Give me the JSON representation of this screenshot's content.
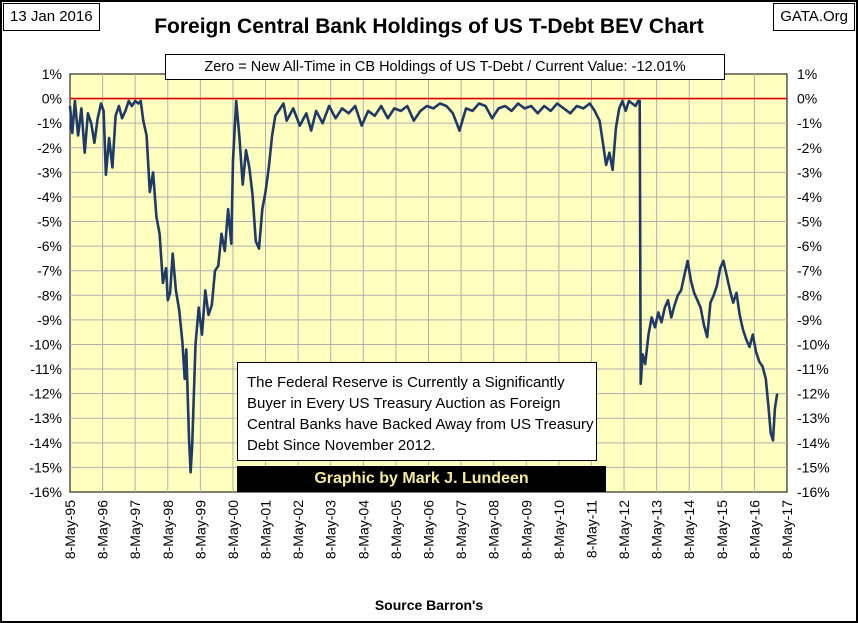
{
  "header": {
    "date": "13 Jan 2016",
    "source_site": "GATA.Org",
    "title": "Foreign Central Bank Holdings of US T-Debt BEV Chart"
  },
  "note": "Zero = New All-Time in CB Holdings of US T-Debt / Current Value: -12.01%",
  "annotation": "The Federal Reserve is Currently a Significantly Buyer in Every US Treasury Auction as Foreign Central Banks have Backed Away from US Treasury Debt Since November 2012.",
  "credit": "Graphic by Mark J. Lundeen",
  "x_axis_source": "Source Barron's",
  "colors": {
    "plot_background": "#ffffc0",
    "series_line": "#1f3a66",
    "zero_line": "#e00000"
  },
  "chart_data": {
    "type": "line",
    "title": "Foreign Central Bank Holdings of US T-Debt BEV Chart",
    "xlabel": "Source Barron's",
    "ylabel": "",
    "ylim": [
      -16,
      1
    ],
    "xlim": [
      1995.35,
      2017.35
    ],
    "y_ticks": [
      "1%",
      "0%",
      "-1%",
      "-2%",
      "-3%",
      "-4%",
      "-5%",
      "-6%",
      "-7%",
      "-8%",
      "-9%",
      "-10%",
      "-11%",
      "-12%",
      "-13%",
      "-14%",
      "-15%",
      "-16%"
    ],
    "x_ticks": [
      "8-May-95",
      "8-May-96",
      "8-May-97",
      "8-May-98",
      "8-May-99",
      "8-May-00",
      "8-May-01",
      "8-May-02",
      "8-May-03",
      "8-May-04",
      "8-May-05",
      "8-May-06",
      "8-May-07",
      "8-May-08",
      "8-May-09",
      "8-May-10",
      "8-May-11",
      "8-May-12",
      "8-May-13",
      "8-May-14",
      "8-May-15",
      "8-May-16",
      "8-May-17"
    ],
    "grid": true,
    "reference_line": 0,
    "current_value": -12.01,
    "series": [
      {
        "x": [
          1995.35,
          1995.42,
          1995.5,
          1995.6,
          1995.7,
          1995.8,
          1995.9,
          1996.0,
          1996.1,
          1996.2,
          1996.3,
          1996.38,
          1996.45,
          1996.55,
          1996.65,
          1996.75,
          1996.85,
          1996.95,
          1997.05,
          1997.15,
          1997.25,
          1997.35,
          1997.45,
          1997.52,
          1997.6,
          1997.7,
          1997.8,
          1997.9,
          1998.0,
          1998.1,
          1998.2,
          1998.3,
          1998.35,
          1998.42,
          1998.5,
          1998.6,
          1998.7,
          1998.8,
          1998.87,
          1998.92,
          1999.0,
          1999.05,
          1999.1,
          1999.2,
          1999.3,
          1999.4,
          1999.5,
          1999.6,
          1999.7,
          1999.8,
          1999.9,
          2000.0,
          2000.1,
          2000.2,
          2000.3,
          2000.35,
          2000.45,
          2000.55,
          2000.65,
          2000.75,
          2000.85,
          2000.95,
          2001.05,
          2001.15,
          2001.25,
          2001.35,
          2001.45,
          2001.55,
          2001.65,
          2001.75,
          2001.9,
          2002.0,
          2002.2,
          2002.4,
          2002.6,
          2002.75,
          2002.9,
          2003.1,
          2003.3,
          2003.5,
          2003.7,
          2003.9,
          2004.1,
          2004.3,
          2004.5,
          2004.7,
          2004.9,
          2005.1,
          2005.3,
          2005.5,
          2005.7,
          2005.9,
          2006.1,
          2006.3,
          2006.5,
          2006.7,
          2006.9,
          2007.1,
          2007.3,
          2007.5,
          2007.7,
          2007.9,
          2008.1,
          2008.3,
          2008.5,
          2008.7,
          2008.9,
          2009.1,
          2009.3,
          2009.5,
          2009.7,
          2009.9,
          2010.1,
          2010.3,
          2010.5,
          2010.7,
          2010.9,
          2011.1,
          2011.3,
          2011.45,
          2011.6,
          2011.7,
          2011.8,
          2011.9,
          2012.0,
          2012.1,
          2012.2,
          2012.3,
          2012.4,
          2012.5,
          2012.6,
          2012.7,
          2012.78,
          2012.83,
          2012.86,
          2012.92,
          2013.0,
          2013.1,
          2013.2,
          2013.3,
          2013.4,
          2013.5,
          2013.6,
          2013.7,
          2013.8,
          2013.9,
          2014.0,
          2014.1,
          2014.2,
          2014.3,
          2014.4,
          2014.5,
          2014.6,
          2014.7,
          2014.8,
          2014.9,
          2015.0,
          2015.1,
          2015.2,
          2015.3,
          2015.4,
          2015.5,
          2015.6,
          2015.7,
          2015.8,
          2015.9,
          2016.0,
          2016.1,
          2016.2,
          2016.3,
          2016.4,
          2016.5,
          2016.6,
          2016.7,
          2016.78,
          2016.85,
          2016.92,
          2016.98,
          2017.05
        ],
        "values": [
          -0.3,
          -1.4,
          -0.1,
          -1.5,
          -0.4,
          -2.2,
          -0.6,
          -1.0,
          -1.8,
          -0.8,
          -0.2,
          -0.5,
          -3.1,
          -1.6,
          -2.8,
          -0.7,
          -0.3,
          -0.8,
          -0.5,
          -0.1,
          -0.3,
          -0.1,
          -0.2,
          -0.1,
          -0.9,
          -1.5,
          -3.8,
          -3.0,
          -4.8,
          -5.5,
          -7.5,
          -6.9,
          -8.2,
          -7.9,
          -6.3,
          -7.8,
          -8.6,
          -9.9,
          -11.4,
          -10.2,
          -13.8,
          -15.2,
          -14.1,
          -10.0,
          -8.5,
          -9.6,
          -7.8,
          -8.8,
          -8.4,
          -7.0,
          -6.8,
          -5.5,
          -6.2,
          -4.5,
          -5.9,
          -2.5,
          -0.1,
          -1.6,
          -3.5,
          -2.1,
          -2.8,
          -3.9,
          -5.8,
          -6.1,
          -4.5,
          -3.8,
          -2.8,
          -1.5,
          -0.7,
          -0.5,
          -0.2,
          -0.9,
          -0.4,
          -1.1,
          -0.6,
          -1.3,
          -0.5,
          -1.0,
          -0.3,
          -0.8,
          -0.4,
          -0.6,
          -0.3,
          -1.1,
          -0.5,
          -0.7,
          -0.3,
          -0.8,
          -0.4,
          -0.5,
          -0.3,
          -0.9,
          -0.5,
          -0.3,
          -0.4,
          -0.2,
          -0.3,
          -0.6,
          -1.3,
          -0.4,
          -0.5,
          -0.2,
          -0.3,
          -0.8,
          -0.4,
          -0.3,
          -0.5,
          -0.2,
          -0.4,
          -0.3,
          -0.6,
          -0.3,
          -0.5,
          -0.2,
          -0.4,
          -0.6,
          -0.3,
          -0.4,
          -0.2,
          -0.5,
          -0.9,
          -1.8,
          -2.7,
          -2.2,
          -2.9,
          -1.2,
          -0.4,
          -0.1,
          -0.5,
          -0.1,
          -0.2,
          -0.3,
          -0.1,
          -0.1,
          -11.6,
          -10.4,
          -10.8,
          -9.6,
          -8.9,
          -9.3,
          -8.7,
          -9.1,
          -8.5,
          -8.2,
          -8.9,
          -8.4,
          -8.0,
          -7.8,
          -7.2,
          -6.6,
          -7.4,
          -7.9,
          -8.2,
          -8.5,
          -9.2,
          -9.7,
          -8.3,
          -8.0,
          -7.6,
          -6.9,
          -6.6,
          -7.2,
          -7.8,
          -8.3,
          -7.9,
          -8.8,
          -9.4,
          -9.8,
          -10.1,
          -9.6,
          -10.3,
          -10.7,
          -10.9,
          -11.4,
          -12.5,
          -13.6,
          -13.9,
          -12.6,
          -12.0
        ]
      }
    ]
  }
}
